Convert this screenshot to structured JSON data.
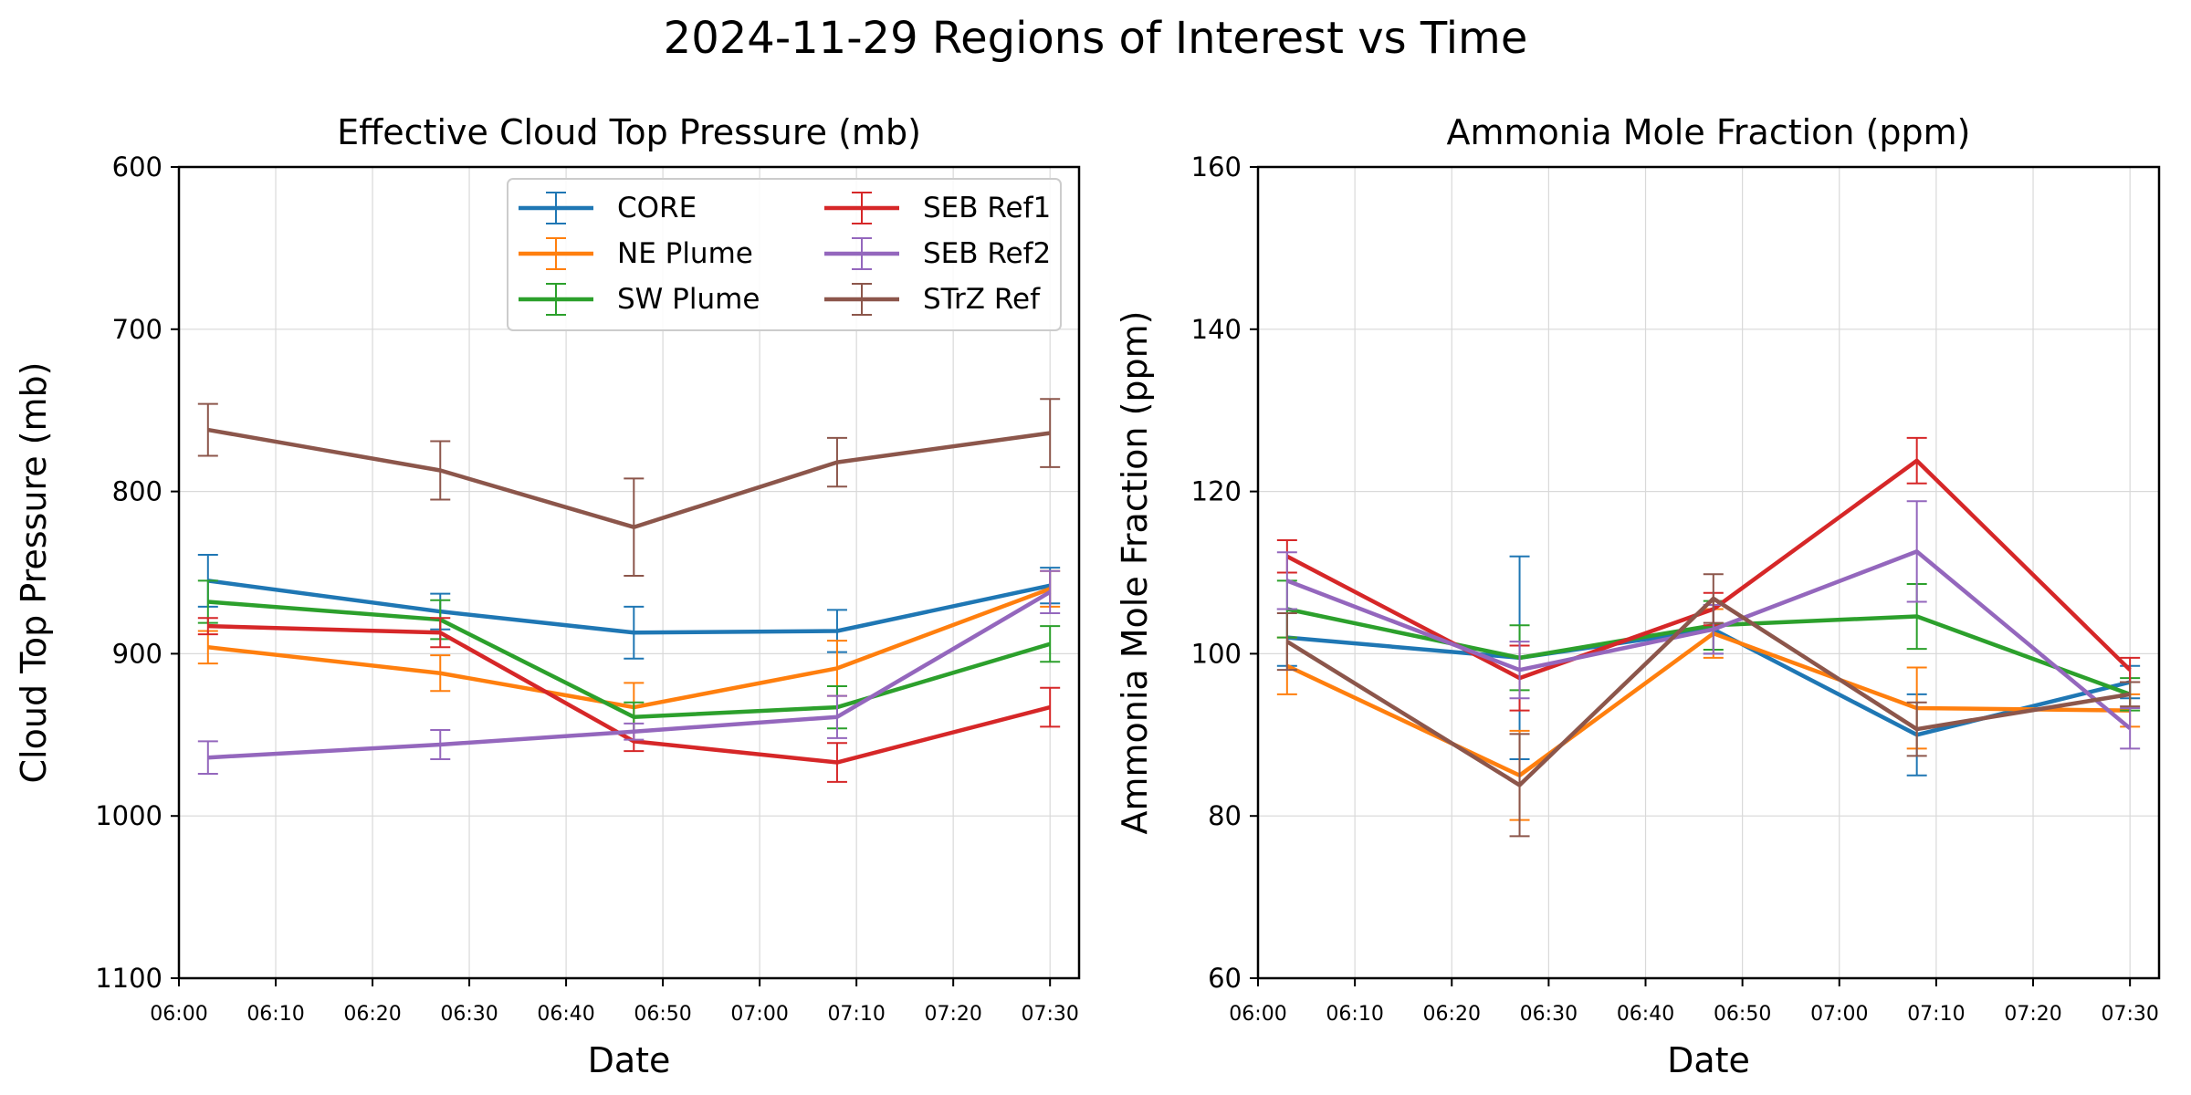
{
  "figure": {
    "title": "2024-11-29 Regions of Interest vs Time"
  },
  "chart_data": [
    {
      "type": "line",
      "title": "Effective Cloud Top Pressure (mb)",
      "xlabel": "Date",
      "ylabel": "Cloud Top Pressure (mb)",
      "ylim": [
        600,
        1100
      ],
      "y_inverted": true,
      "yticks": [
        600,
        700,
        800,
        900,
        1000,
        1100
      ],
      "xlim": [
        "06:00",
        "07:33"
      ],
      "xticks": [
        "06:00",
        "06:10",
        "06:20",
        "06:30",
        "06:40",
        "06:50",
        "07:00",
        "07:10",
        "07:20",
        "07:30"
      ],
      "grid": true,
      "legend": {
        "placement": "top-right",
        "columns": 2
      },
      "x": [
        "06:03",
        "06:27",
        "06:47",
        "07:08",
        "07:30"
      ],
      "series": [
        {
          "name": "CORE",
          "color": "#1f77b4",
          "values": [
            855,
            874,
            887,
            886,
            858
          ],
          "errors": [
            16,
            11,
            16,
            13,
            11
          ]
        },
        {
          "name": "NE Plume",
          "color": "#ff7f0e",
          "values": [
            896,
            912,
            933,
            909,
            860
          ],
          "errors": [
            10,
            11,
            15,
            17,
            11
          ]
        },
        {
          "name": "SW Plume",
          "color": "#2ca02c",
          "values": [
            868,
            879,
            939,
            933,
            894
          ],
          "errors": [
            13,
            12,
            9,
            13,
            11
          ]
        },
        {
          "name": "SEB Ref1",
          "color": "#d62728",
          "values": [
            883,
            887,
            954,
            967,
            933
          ],
          "errors": [
            5,
            9,
            6,
            12,
            12
          ]
        },
        {
          "name": "SEB Ref2",
          "color": "#9467bd",
          "values": [
            964,
            956,
            948,
            939,
            862
          ],
          "errors": [
            10,
            9,
            5,
            13,
            13
          ]
        },
        {
          "name": "STrZ Ref",
          "color": "#8c564b",
          "values": [
            762,
            787,
            822,
            782,
            764
          ],
          "errors": [
            16,
            18,
            30,
            15,
            21
          ]
        }
      ]
    },
    {
      "type": "line",
      "title": "Ammonia Mole Fraction (ppm)",
      "xlabel": "Date",
      "ylabel": "Ammonia Mole Fraction (ppm)",
      "ylim": [
        60,
        160
      ],
      "yticks": [
        60,
        80,
        100,
        120,
        140,
        160
      ],
      "xlim": [
        "06:00",
        "07:33"
      ],
      "xticks": [
        "06:00",
        "06:10",
        "06:20",
        "06:30",
        "06:40",
        "06:50",
        "07:00",
        "07:10",
        "07:20",
        "07:30"
      ],
      "grid": true,
      "x": [
        "06:03",
        "06:27",
        "06:47",
        "07:08",
        "07:30"
      ],
      "series": [
        {
          "name": "CORE",
          "color": "#1f77b4",
          "values": [
            102,
            99.5,
            103,
            90,
            96.5
          ],
          "errors": [
            3.5,
            12.5,
            3,
            5,
            2
          ]
        },
        {
          "name": "NE Plume",
          "color": "#ff7f0e",
          "values": [
            98.5,
            85,
            102.5,
            93.3,
            93
          ],
          "errors": [
            3.5,
            5.5,
            3,
            5,
            2
          ]
        },
        {
          "name": "SW Plume",
          "color": "#2ca02c",
          "values": [
            105.5,
            99.5,
            103.5,
            104.6,
            95
          ],
          "errors": [
            3.5,
            4,
            3,
            4,
            2
          ]
        },
        {
          "name": "SEB Ref1",
          "color": "#d62728",
          "values": [
            112,
            97,
            105.5,
            123.8,
            98
          ],
          "errors": [
            2,
            4,
            2,
            2.8,
            1.5
          ]
        },
        {
          "name": "SEB Ref2",
          "color": "#9467bd",
          "values": [
            109,
            98,
            103,
            112.6,
            90.8
          ],
          "errors": [
            3.5,
            3.5,
            3,
            6.2,
            2.5
          ]
        },
        {
          "name": "STrZ Ref",
          "color": "#8c564b",
          "values": [
            101.5,
            83.8,
            106.8,
            90.7,
            95
          ],
          "errors": [
            3.5,
            6.3,
            3,
            3.3,
            1.5
          ]
        }
      ]
    }
  ]
}
